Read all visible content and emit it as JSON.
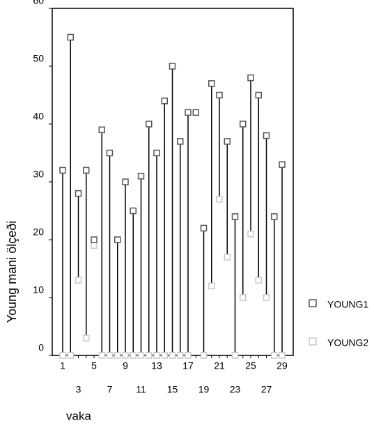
{
  "chart_data": {
    "type": "dropline",
    "y_label": "Young mani ölçeði",
    "x_label": "vaka",
    "categories": [
      "1",
      null,
      "3",
      null,
      "5",
      null,
      "7",
      null,
      "9",
      null,
      "11",
      null,
      "13",
      null,
      "15",
      null,
      "17",
      null,
      "19",
      null,
      "21",
      null,
      "23",
      null,
      "25",
      null,
      "27",
      null,
      "29"
    ],
    "series": [
      {
        "name": "YOUNG1",
        "color": "#555555",
        "values": [
          32,
          55,
          28,
          32,
          20,
          39,
          35,
          20,
          30,
          25,
          31,
          40,
          35,
          44,
          50,
          37,
          42,
          42,
          22,
          47,
          45,
          37,
          24,
          40,
          48,
          45,
          38,
          24,
          33
        ]
      },
      {
        "name": "YOUNG2",
        "color": "#c8c8c8",
        "values": [
          0,
          0,
          13,
          3,
          19,
          0,
          0,
          0,
          0,
          0,
          0,
          0,
          0,
          0,
          0,
          0,
          0,
          null,
          0,
          12,
          27,
          17,
          0,
          10,
          21,
          13,
          10,
          0,
          0
        ]
      }
    ],
    "ylim": [
      0,
      60
    ],
    "yticks": [
      0,
      10,
      20,
      30,
      40,
      50,
      60
    ]
  }
}
